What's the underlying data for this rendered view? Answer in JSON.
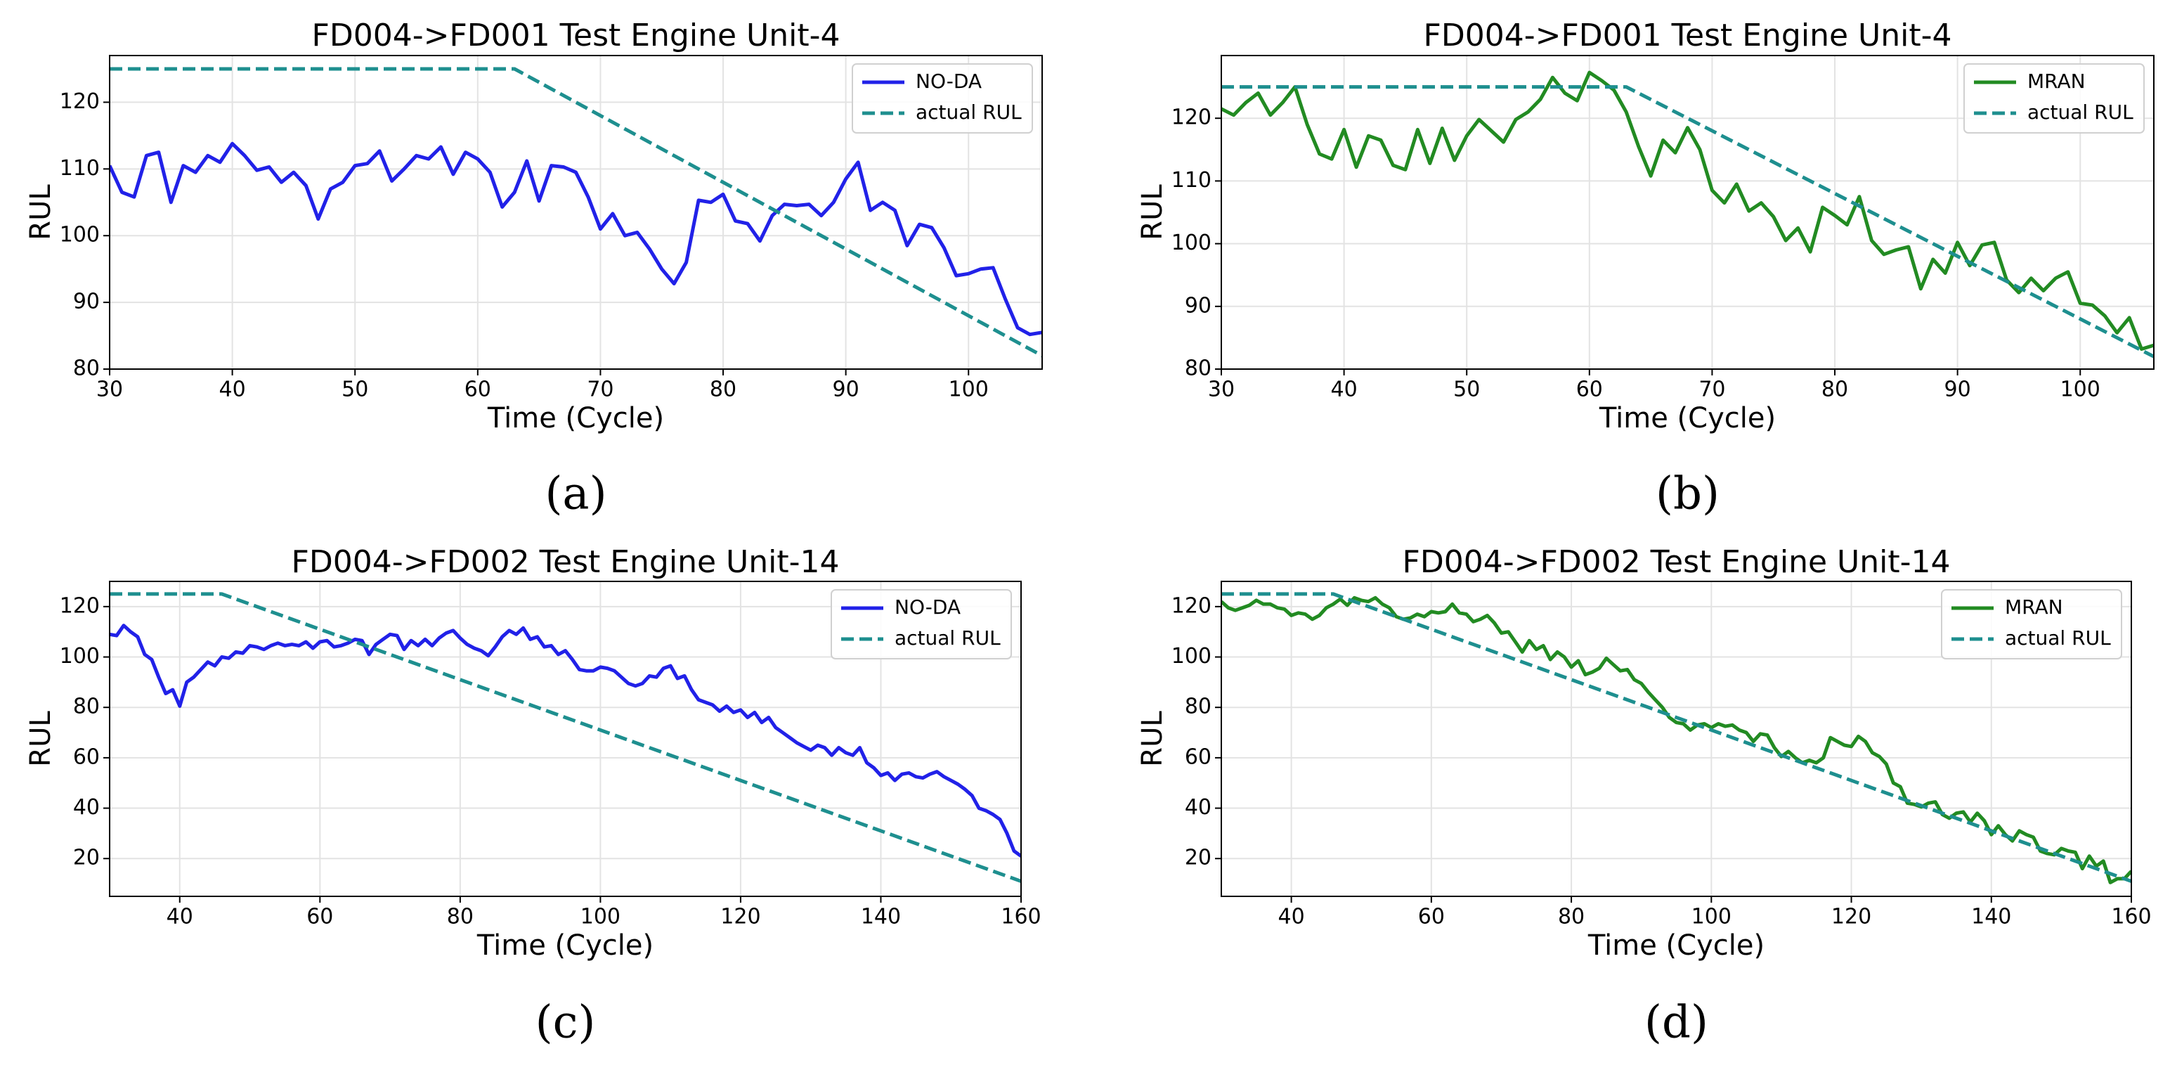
{
  "chart_data": [
    {
      "type": "line",
      "title": "FD004->FD001 Test Engine Unit-4",
      "xlabel": "Time (Cycle)",
      "ylabel": "RUL",
      "caption": "(a)",
      "xlim": [
        30,
        106
      ],
      "ylim": [
        80,
        127
      ],
      "xticks": [
        30,
        40,
        50,
        60,
        70,
        80,
        90,
        100
      ],
      "yticks": [
        80,
        90,
        100,
        110,
        120
      ],
      "grid": true,
      "legend": "upper right",
      "series": [
        {
          "name": "NO-DA",
          "color": "#2121e8",
          "dash": false,
          "x": [
            30,
            31,
            32,
            33,
            34,
            35,
            36,
            37,
            38,
            39,
            40,
            41,
            42,
            43,
            44,
            45,
            46,
            47,
            48,
            49,
            50,
            51,
            52,
            53,
            54,
            55,
            56,
            57,
            58,
            59,
            60,
            61,
            62,
            63,
            64,
            65,
            66,
            67,
            68,
            69,
            70,
            71,
            72,
            73,
            74,
            75,
            76,
            77,
            78,
            79,
            80,
            81,
            82,
            83,
            84,
            85,
            86,
            87,
            88,
            89,
            90,
            91,
            92,
            93,
            94,
            95,
            96,
            97,
            98,
            99,
            100,
            101,
            102,
            103,
            104,
            105,
            106
          ],
          "values": [
            110.5,
            106.5,
            105.8,
            112,
            112.5,
            105,
            110.5,
            109.5,
            112,
            111,
            113.8,
            112,
            109.8,
            110.3,
            108,
            109.5,
            107.5,
            102.5,
            107,
            108,
            110.5,
            110.8,
            112.7,
            108.2,
            110,
            112,
            111.5,
            113.3,
            109.2,
            112.5,
            111.5,
            109.5,
            104.3,
            106.5,
            111.2,
            105.2,
            110.5,
            110.3,
            109.5,
            105.8,
            101,
            103.3,
            100,
            100.5,
            98,
            95,
            92.8,
            96,
            105.3,
            105,
            106.2,
            102.2,
            101.8,
            99.2,
            103,
            104.7,
            104.5,
            104.7,
            103,
            105,
            108.5,
            111,
            103.8,
            105,
            103.8,
            98.5,
            101.7,
            101.2,
            98.2,
            94,
            94.3,
            95,
            95.2,
            90.5,
            86.2,
            85.2,
            85.5
          ]
        },
        {
          "name": "actual RUL",
          "color": "#1e8f8f",
          "dash": true,
          "x": [
            30,
            63,
            106
          ],
          "values": [
            125,
            125,
            82
          ]
        }
      ]
    },
    {
      "type": "line",
      "title": "FD004->FD001 Test Engine Unit-4",
      "xlabel": "Time (Cycle)",
      "ylabel": "RUL",
      "caption": "(b)",
      "xlim": [
        30,
        106
      ],
      "ylim": [
        80,
        130
      ],
      "xticks": [
        30,
        40,
        50,
        60,
        70,
        80,
        90,
        100
      ],
      "yticks": [
        80,
        90,
        100,
        110,
        120
      ],
      "grid": true,
      "legend": "upper right",
      "series": [
        {
          "name": "MRAN",
          "color": "#228b22",
          "dash": false,
          "x": [
            30,
            31,
            32,
            33,
            34,
            35,
            36,
            37,
            38,
            39,
            40,
            41,
            42,
            43,
            44,
            45,
            46,
            47,
            48,
            49,
            50,
            51,
            52,
            53,
            54,
            55,
            56,
            57,
            58,
            59,
            60,
            61,
            62,
            63,
            64,
            65,
            66,
            67,
            68,
            69,
            70,
            71,
            72,
            73,
            74,
            75,
            76,
            77,
            78,
            79,
            80,
            81,
            82,
            83,
            84,
            85,
            86,
            87,
            88,
            89,
            90,
            91,
            92,
            93,
            94,
            95,
            96,
            97,
            98,
            99,
            100,
            101,
            102,
            103,
            104,
            105,
            106
          ],
          "values": [
            121.5,
            120.5,
            122.5,
            124,
            120.5,
            122.5,
            125,
            119,
            114.3,
            113.5,
            118.2,
            112.2,
            117.2,
            116.5,
            112.5,
            111.8,
            118.2,
            112.8,
            118.4,
            113.3,
            117.2,
            119.8,
            118,
            116.2,
            119.8,
            121,
            123,
            126.5,
            124,
            122.8,
            127.3,
            126,
            124.5,
            121,
            115.5,
            110.8,
            116.5,
            114.5,
            118.5,
            115,
            108.5,
            106.5,
            109.5,
            105.2,
            106.5,
            104.3,
            100.5,
            102.5,
            98.7,
            105.8,
            104.5,
            103,
            107.5,
            100.5,
            98.3,
            99,
            99.5,
            92.8,
            97.5,
            95.3,
            100.2,
            96.5,
            99.8,
            100.2,
            94.2,
            92.2,
            94.5,
            92.5,
            94.5,
            95.5,
            90.5,
            90.2,
            88.5,
            85.8,
            88.2,
            83.2,
            83.8
          ]
        },
        {
          "name": "actual RUL",
          "color": "#1e8f8f",
          "dash": true,
          "x": [
            30,
            63,
            106
          ],
          "values": [
            125,
            125,
            82
          ]
        }
      ]
    },
    {
      "type": "line",
      "title": "FD004->FD002 Test Engine Unit-14",
      "xlabel": "Time (Cycle)",
      "ylabel": "RUL",
      "caption": "(c)",
      "xlim": [
        30,
        160
      ],
      "ylim": [
        5,
        130
      ],
      "xticks": [
        40,
        60,
        80,
        100,
        120,
        140,
        160
      ],
      "yticks": [
        20,
        40,
        60,
        80,
        100,
        120
      ],
      "grid": true,
      "legend": "upper right",
      "series": [
        {
          "name": "NO-DA",
          "color": "#2121e8",
          "dash": false,
          "x": [
            30,
            31,
            32,
            33,
            34,
            35,
            36,
            37,
            38,
            39,
            40,
            41,
            42,
            43,
            44,
            45,
            46,
            47,
            48,
            49,
            50,
            51,
            52,
            53,
            54,
            55,
            56,
            57,
            58,
            59,
            60,
            61,
            62,
            63,
            64,
            65,
            66,
            67,
            68,
            69,
            70,
            71,
            72,
            73,
            74,
            75,
            76,
            77,
            78,
            79,
            80,
            81,
            82,
            83,
            84,
            85,
            86,
            87,
            88,
            89,
            90,
            91,
            92,
            93,
            94,
            95,
            96,
            97,
            98,
            99,
            100,
            101,
            102,
            103,
            104,
            105,
            106,
            107,
            108,
            109,
            110,
            111,
            112,
            113,
            114,
            115,
            116,
            117,
            118,
            119,
            120,
            121,
            122,
            123,
            124,
            125,
            126,
            127,
            128,
            129,
            130,
            131,
            132,
            133,
            134,
            135,
            136,
            137,
            138,
            139,
            140,
            141,
            142,
            143,
            144,
            145,
            146,
            147,
            148,
            149,
            150,
            151,
            152,
            153,
            154,
            155,
            156,
            157,
            158,
            159,
            160
          ],
          "values": [
            109,
            108.5,
            112.5,
            110,
            108,
            101,
            99,
            92,
            85.5,
            87,
            80.5,
            90,
            92,
            95,
            98,
            96.5,
            100,
            99.5,
            102,
            101.5,
            104.5,
            104,
            103,
            104.5,
            105.5,
            104.5,
            105,
            104.5,
            106,
            103.5,
            106,
            106.5,
            104,
            104.5,
            105.5,
            107,
            106.5,
            101,
            105,
            107,
            109,
            108.5,
            103,
            106.5,
            104.5,
            107,
            104.5,
            107.5,
            109.5,
            110.5,
            107.5,
            105,
            103.5,
            102.5,
            100.5,
            104,
            108,
            110.5,
            109,
            111.5,
            107,
            108,
            104,
            104.5,
            101,
            102.5,
            99,
            95,
            94.5,
            94.5,
            96,
            95.5,
            94.5,
            92,
            89.5,
            88.5,
            89.5,
            92.5,
            92,
            95.5,
            96.5,
            91.5,
            92.5,
            87,
            83,
            82,
            81,
            78.5,
            80.5,
            78,
            79,
            76,
            78,
            74,
            76,
            72,
            70,
            68,
            66,
            64.5,
            63,
            65,
            64,
            61,
            64,
            62,
            61,
            64,
            58,
            56,
            53,
            54,
            51,
            53.5,
            54,
            52.5,
            52,
            53.5,
            54.5,
            52.5,
            51,
            49.5,
            47.5,
            45,
            40,
            39,
            37.5,
            35.5,
            30,
            23,
            21
          ]
        },
        {
          "name": "actual RUL",
          "color": "#1e8f8f",
          "dash": true,
          "x": [
            30,
            46,
            160
          ],
          "values": [
            125,
            125,
            11
          ]
        }
      ]
    },
    {
      "type": "line",
      "title": "FD004->FD002 Test Engine Unit-14",
      "xlabel": "Time (Cycle)",
      "ylabel": "RUL",
      "caption": "(d)",
      "xlim": [
        30,
        160
      ],
      "ylim": [
        5,
        130
      ],
      "xticks": [
        40,
        60,
        80,
        100,
        120,
        140,
        160
      ],
      "yticks": [
        20,
        40,
        60,
        80,
        100,
        120
      ],
      "grid": true,
      "legend": "upper right",
      "series": [
        {
          "name": "MRAN",
          "color": "#228b22",
          "dash": false,
          "x": [
            30,
            31,
            32,
            33,
            34,
            35,
            36,
            37,
            38,
            39,
            40,
            41,
            42,
            43,
            44,
            45,
            46,
            47,
            48,
            49,
            50,
            51,
            52,
            53,
            54,
            55,
            56,
            57,
            58,
            59,
            60,
            61,
            62,
            63,
            64,
            65,
            66,
            67,
            68,
            69,
            70,
            71,
            72,
            73,
            74,
            75,
            76,
            77,
            78,
            79,
            80,
            81,
            82,
            83,
            84,
            85,
            86,
            87,
            88,
            89,
            90,
            91,
            92,
            93,
            94,
            95,
            96,
            97,
            98,
            99,
            100,
            101,
            102,
            103,
            104,
            105,
            106,
            107,
            108,
            109,
            110,
            111,
            112,
            113,
            114,
            115,
            116,
            117,
            118,
            119,
            120,
            121,
            122,
            123,
            124,
            125,
            126,
            127,
            128,
            129,
            130,
            131,
            132,
            133,
            134,
            135,
            136,
            137,
            138,
            139,
            140,
            141,
            142,
            143,
            144,
            145,
            146,
            147,
            148,
            149,
            150,
            151,
            152,
            153,
            154,
            155,
            156,
            157,
            158,
            159,
            160
          ],
          "values": [
            122,
            119.5,
            118.5,
            119.5,
            120.5,
            122.5,
            121,
            121,
            119.5,
            119,
            116.5,
            117.5,
            117,
            115,
            116.5,
            119.5,
            121,
            123,
            120.5,
            123.5,
            122.5,
            122,
            123.5,
            121,
            119.5,
            116,
            115,
            115.5,
            117,
            116,
            118,
            117.5,
            118,
            121,
            117.5,
            117,
            114,
            115,
            116.5,
            113.5,
            109.5,
            110,
            106,
            102,
            106.5,
            103,
            104.5,
            99,
            102,
            100,
            96,
            98.5,
            93,
            94,
            95.5,
            99.5,
            97,
            94.5,
            95,
            91,
            89.5,
            86,
            83,
            80,
            76,
            74,
            73.5,
            71,
            73,
            73.5,
            72,
            73.5,
            72.5,
            73,
            71,
            70,
            66.5,
            69.5,
            69,
            64,
            60.5,
            62.5,
            60,
            58,
            59,
            58,
            60,
            68,
            66.5,
            65,
            64.5,
            68.5,
            66.5,
            62,
            60.5,
            57.5,
            50,
            48.5,
            42,
            41.5,
            40.5,
            42,
            42.5,
            37.5,
            36,
            38,
            38.5,
            34.5,
            38,
            35,
            29.5,
            33,
            29.5,
            27,
            31,
            29.5,
            28.5,
            23,
            22,
            21.5,
            24,
            23,
            22.5,
            16,
            21,
            17,
            19,
            10.5,
            12,
            12,
            15
          ]
        },
        {
          "name": "actual RUL",
          "color": "#1e8f8f",
          "dash": true,
          "x": [
            30,
            46,
            160
          ],
          "values": [
            125,
            125,
            11
          ]
        }
      ]
    }
  ]
}
